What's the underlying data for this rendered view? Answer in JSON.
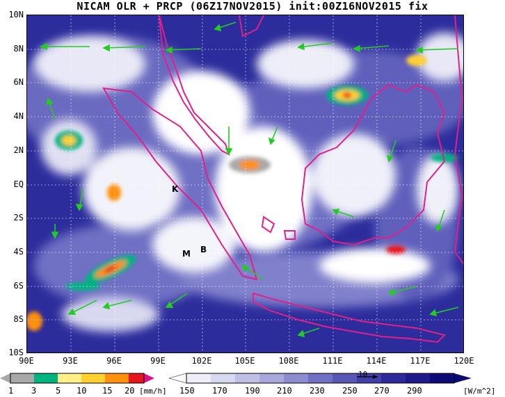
{
  "title": "NICAM OLR + PRCP (06Z17NOV2015) init:00Z16NOV2015 fix",
  "map": {
    "lat_labels": [
      "10N",
      "8N",
      "6N",
      "4N",
      "2N",
      "EQ",
      "2S",
      "4S",
      "6S",
      "8S",
      "10S"
    ],
    "lon_labels": [
      "90E",
      "93E",
      "96E",
      "99E",
      "102E",
      "105E",
      "108E",
      "111E",
      "114E",
      "117E",
      "120E"
    ],
    "markers": [
      {
        "label": "K",
        "lon": 100.2,
        "lat": -0.2
      },
      {
        "label": "M",
        "lon": 100.6,
        "lat": -4.4
      },
      {
        "label": "B",
        "lon": 102.2,
        "lat": -4.2
      }
    ],
    "colors": {
      "coastline": "#e0208a",
      "wind": "#22cc22",
      "olr_deep": "#1a1a8a",
      "olr_mid": "#4848b8",
      "olr_light": "#9898d8"
    }
  },
  "precip_colorbar": {
    "labels": [
      "1",
      "3",
      "5",
      "10",
      "15",
      "20"
    ],
    "units": "[mm/h]",
    "colors": [
      "#a8a8a8",
      "#00b482",
      "#fff08a",
      "#ffd030",
      "#ff9010",
      "#e8141e",
      "#d8148c"
    ]
  },
  "olr_colorbar": {
    "labels": [
      "150",
      "170",
      "190",
      "210",
      "230",
      "250",
      "270",
      "290"
    ],
    "units": "[W/m^2]",
    "colors": [
      "#ffffff",
      "#eeeef8",
      "#d8d8f0",
      "#c0c0e6",
      "#a8a8dc",
      "#8c8cd0",
      "#7070c4",
      "#5858b8",
      "#4040aa",
      "#2a2a9a",
      "#1a1a8a",
      "#0c0c78"
    ]
  },
  "wind_reference": "10"
}
